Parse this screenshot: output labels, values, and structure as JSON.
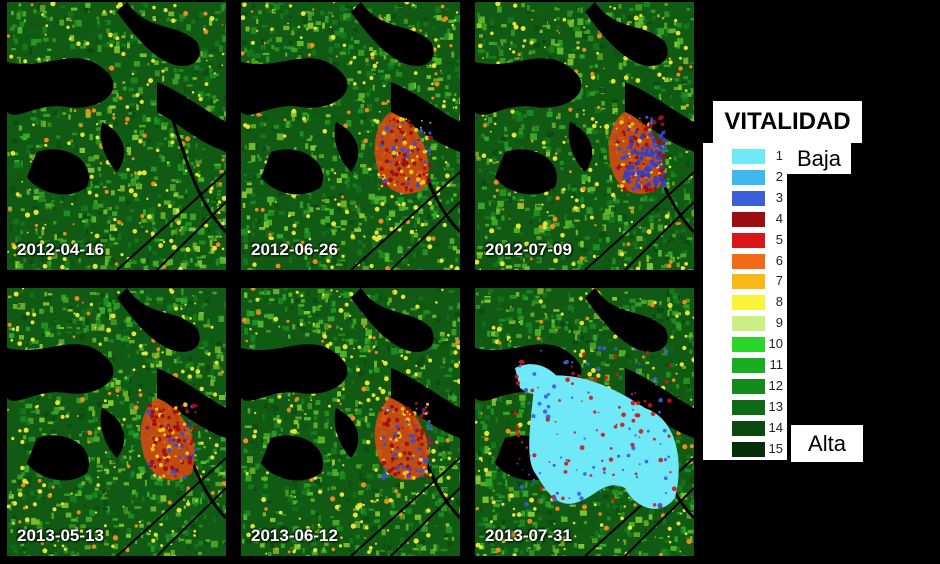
{
  "legend": {
    "title": "VITALIDAD",
    "low_label": "Baja",
    "high_label": "Alta",
    "classes": [
      {
        "value": "1",
        "color": "#6fe8f7"
      },
      {
        "value": "2",
        "color": "#3fb8ef"
      },
      {
        "value": "3",
        "color": "#3a5fd8"
      },
      {
        "value": "4",
        "color": "#9b0d10"
      },
      {
        "value": "5",
        "color": "#d9171a"
      },
      {
        "value": "6",
        "color": "#f26a16"
      },
      {
        "value": "7",
        "color": "#f8b818"
      },
      {
        "value": "8",
        "color": "#fbf23a"
      },
      {
        "value": "9",
        "color": "#cbef85"
      },
      {
        "value": "10",
        "color": "#2bd42b"
      },
      {
        "value": "11",
        "color": "#19ae22"
      },
      {
        "value": "12",
        "color": "#138a1b"
      },
      {
        "value": "13",
        "color": "#0f6a14"
      },
      {
        "value": "14",
        "color": "#0b4a0f"
      },
      {
        "value": "15",
        "color": "#06300a"
      }
    ]
  },
  "panels": [
    {
      "date": "2012-04-16"
    },
    {
      "date": "2012-06-26"
    },
    {
      "date": "2012-07-09"
    },
    {
      "date": "2013-05-13"
    },
    {
      "date": "2013-06-12"
    },
    {
      "date": "2013-07-31"
    }
  ]
}
